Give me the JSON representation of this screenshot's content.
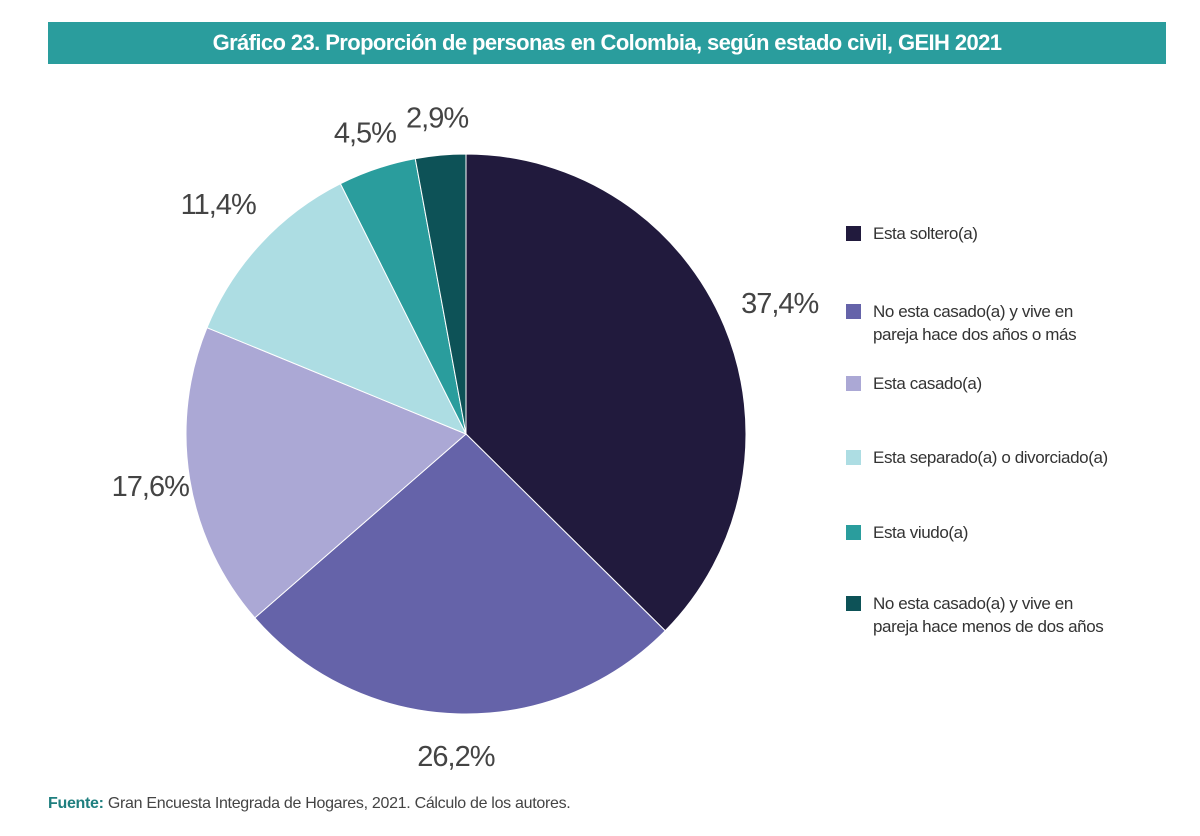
{
  "title": "Gráfico 23. Proporción de personas en Colombia, según estado civil, GEIH 2021",
  "source": {
    "label": "Fuente:",
    "text": "Gran Encuesta Integrada de Hogares, 2021. Cálculo de los autores."
  },
  "chart_data": {
    "type": "pie",
    "title": "Gráfico 23. Proporción de personas en Colombia, según estado civil, GEIH 2021",
    "start": "12 o'clock, clockwise",
    "legend_position": "right",
    "slices": [
      {
        "label": "Esta soltero(a)",
        "value": 37.4,
        "display": "37,4%",
        "color": "#211a3d"
      },
      {
        "label": "No esta casado(a) y vive en pareja hace dos años o más",
        "value": 26.2,
        "display": "26,2%",
        "color": "#6563a9"
      },
      {
        "label": "Esta casado(a)",
        "value": 17.6,
        "display": "17,6%",
        "color": "#aba8d5"
      },
      {
        "label": "Esta separado(a) o divorciado(a)",
        "value": 11.4,
        "display": "11,4%",
        "color": "#addde3"
      },
      {
        "label": "Esta viudo(a)",
        "value": 4.5,
        "display": "4,5%",
        "color": "#2a9d9d"
      },
      {
        "label": "No esta casado(a) y vive en pareja hace menos de dos años",
        "value": 2.9,
        "display": "2,9%",
        "color": "#0d5257"
      }
    ]
  },
  "legend": [
    {
      "text": "Esta soltero(a)",
      "color": "#211a3d"
    },
    {
      "text": "No esta casado(a) y vive en\npareja hace dos años o más",
      "color": "#6563a9"
    },
    {
      "text": "Esta casado(a)",
      "color": "#aba8d5"
    },
    {
      "text": "Esta separado(a) o divorciado(a)",
      "color": "#addde3"
    },
    {
      "text": "Esta viudo(a)",
      "color": "#2a9d9d"
    },
    {
      "text": "No esta casado(a) y vive en\npareja hace menos de dos años",
      "color": "#0d5257"
    }
  ]
}
